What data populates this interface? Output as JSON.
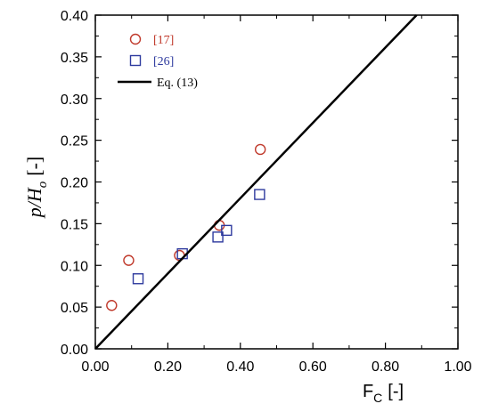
{
  "chart_data": {
    "type": "scatter",
    "xlim": [
      0.0,
      1.0
    ],
    "ylim": [
      0.0,
      0.4
    ],
    "xticks": [
      "0.00",
      "0.20",
      "0.40",
      "0.60",
      "0.80",
      "1.00"
    ],
    "yticks": [
      "0.00",
      "0.05",
      "0.10",
      "0.15",
      "0.20",
      "0.25",
      "0.30",
      "0.35",
      "0.40"
    ],
    "xlabel": {
      "main": "F",
      "sub": "C",
      "unit": "[-]"
    },
    "ylabel": {
      "main": "p/H",
      "sub": "o",
      "unit": "[-]"
    },
    "grid": false,
    "legend_position": "top-left",
    "series": [
      {
        "name": "[17]",
        "marker": "circle",
        "color": "#c0392b",
        "x": [
          0.045,
          0.092,
          0.232,
          0.342,
          0.455
        ],
        "y": [
          0.052,
          0.106,
          0.112,
          0.148,
          0.239
        ]
      },
      {
        "name": "[26]",
        "marker": "square",
        "color": "#2e3a9e",
        "x": [
          0.118,
          0.24,
          0.338,
          0.362,
          0.453
        ],
        "y": [
          0.084,
          0.114,
          0.134,
          0.142,
          0.185
        ]
      },
      {
        "name": "Eq. (13)",
        "marker": "line",
        "color": "#000000",
        "x": [
          0.0,
          0.886
        ],
        "y": [
          0.0,
          0.4
        ]
      }
    ]
  }
}
